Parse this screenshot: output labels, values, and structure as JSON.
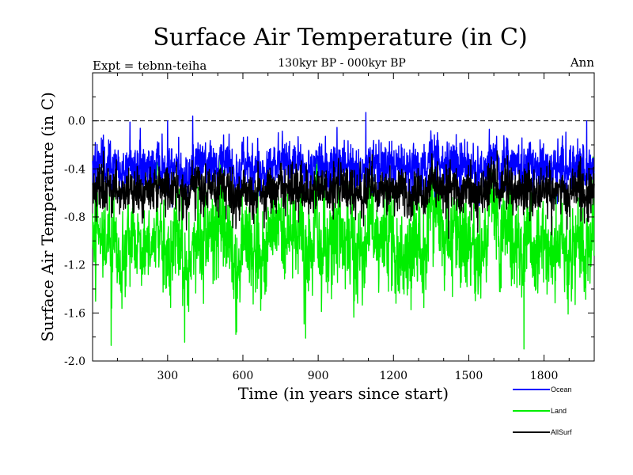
{
  "chart_data": {
    "type": "line",
    "title": "Surface Air Temperature (in C)",
    "subtitle": "130kyr BP - 000kyr BP",
    "experiment_label": "Expt = tebnn-teiha",
    "period_label": "Ann",
    "xlabel": "Time (in years since start)",
    "ylabel": "Surface Air Temperature (in C)",
    "xlim": [
      1,
      2000
    ],
    "ylim": [
      -2.0,
      0.4
    ],
    "x_ticks": [
      300,
      600,
      900,
      1200,
      1500,
      1800
    ],
    "x_tick_labels": [
      "300",
      "600",
      "900",
      "1200",
      "1500",
      "1800"
    ],
    "y_ticks": [
      -2.0,
      -1.6,
      -1.2,
      -0.8,
      -0.4,
      0.0
    ],
    "y_tick_labels": [
      "-2.0",
      "-1.6",
      "-1.2",
      "-0.8",
      "-0.4",
      "0.0"
    ],
    "reference_line": 0.0,
    "series": [
      {
        "name": "Ocean",
        "color": "#0000ff",
        "mean": -0.38,
        "noise_amplitude": 0.13,
        "min": -0.72,
        "max": 0.07,
        "notable_peaks": [
          [
            150,
            -0.01
          ],
          [
            300,
            0.0
          ],
          [
            400,
            0.04
          ],
          [
            1090,
            0.07
          ],
          [
            1970,
            0.0
          ]
        ]
      },
      {
        "name": "Land",
        "color": "#00ee00",
        "mean": -1.0,
        "noise_amplitude": 0.27,
        "min": -1.9,
        "max": -0.3,
        "notable_peaks": [
          [
            75,
            -1.87
          ],
          [
            850,
            -1.81
          ],
          [
            1720,
            -1.9
          ]
        ]
      },
      {
        "name": "AllSurf",
        "color": "#000000",
        "mean": -0.58,
        "noise_amplitude": 0.12,
        "min": -1.0,
        "max": -0.22,
        "notable_peaks": [
          [
            1420,
            -0.98
          ],
          [
            1830,
            -0.95
          ]
        ]
      }
    ],
    "legend": {
      "placement": "bottom-right",
      "entries": [
        "Ocean",
        "Land",
        "AllSurf"
      ]
    }
  }
}
